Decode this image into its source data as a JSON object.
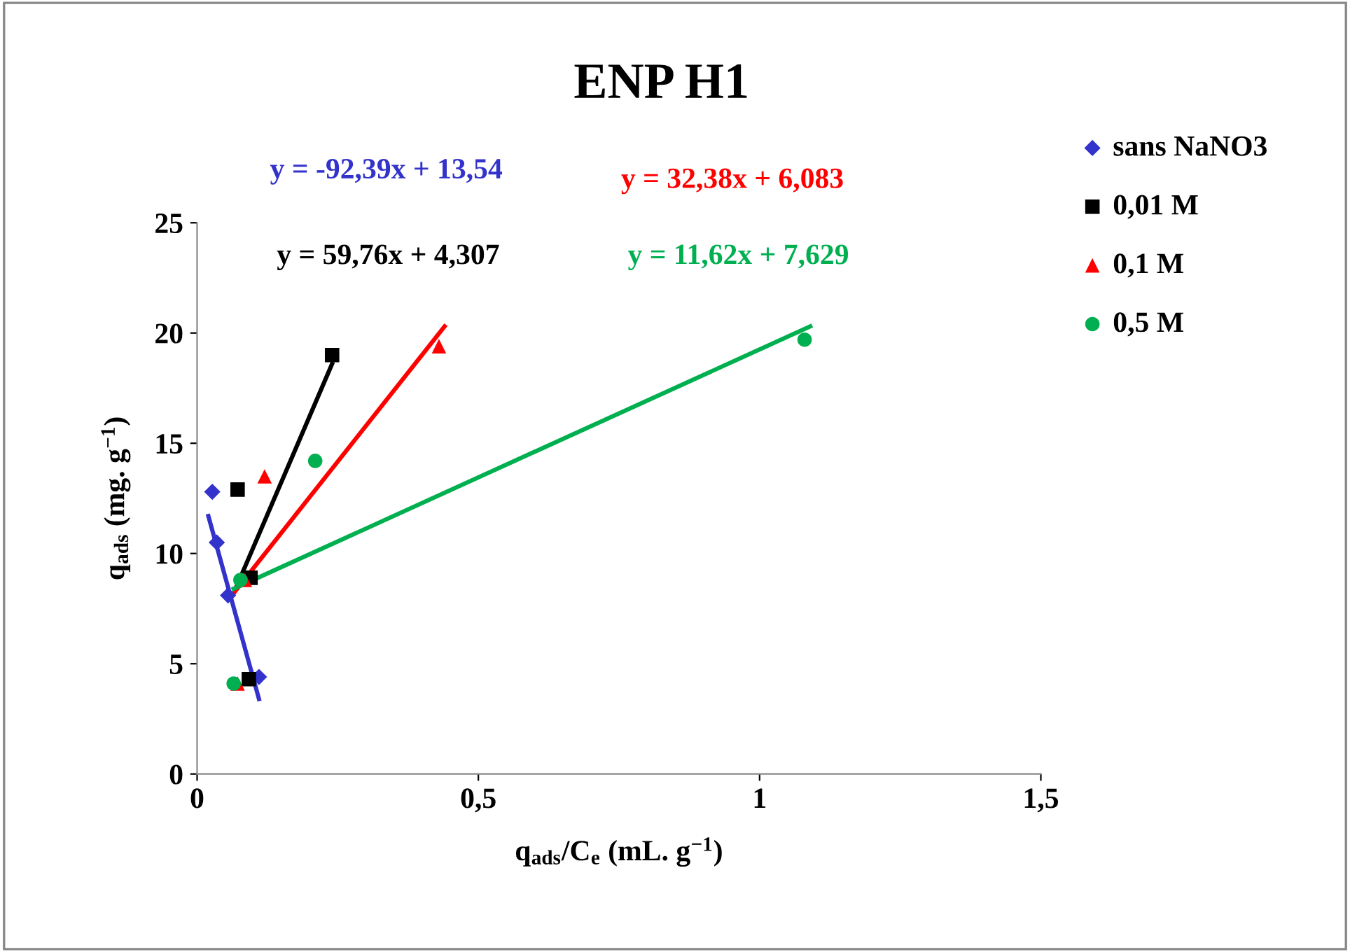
{
  "chart_data": {
    "type": "scatter",
    "title": "ENP H1",
    "xlabel": "q$_{ads}$/C$_{e}$ (mL. g$^{−1}$)",
    "ylabel": "q$_{ads}$ (mg. g$^{−1}$)",
    "xlim": [
      0,
      1.5
    ],
    "ylim": [
      0,
      25
    ],
    "xticks": [
      0,
      {
        "value": 0.5,
        "label": "0,5"
      },
      1,
      {
        "value": 1.5,
        "label": "1,5"
      }
    ],
    "yticks": [
      0,
      5,
      10,
      15,
      20,
      25
    ],
    "grid": false,
    "legend": "right",
    "series": [
      {
        "name": "sans NaNO3",
        "color": "#3333cc",
        "marker": "diamond",
        "x": [
          0.027,
          0.035,
          0.055,
          0.11
        ],
        "values": [
          12.8,
          10.5,
          8.1,
          4.4
        ]
      },
      {
        "name": "0,01 M",
        "color": "#000000",
        "marker": "square",
        "x": [
          0.072,
          0.095,
          0.092,
          0.24
        ],
        "values": [
          12.9,
          8.9,
          4.3,
          19.0
        ]
      },
      {
        "name": "0,1 M",
        "color": "#ff0000",
        "marker": "triangle",
        "x": [
          0.12,
          0.072,
          0.085,
          0.43
        ],
        "values": [
          13.5,
          4.1,
          8.8,
          19.4
        ]
      },
      {
        "name": "0,5 M",
        "color": "#00b050",
        "marker": "circle",
        "x": [
          0.065,
          0.21,
          0.077,
          1.08
        ],
        "values": [
          4.1,
          14.2,
          8.8,
          19.7
        ]
      },
      {
        "type": "line",
        "color": "#3333cc",
        "x": [
          0.02,
          0.11
        ],
        "values": [
          11.7,
          3.4
        ]
      },
      {
        "type": "line",
        "color": "#000000",
        "x": [
          0.065,
          0.24
        ],
        "values": [
          8.2,
          18.6
        ]
      },
      {
        "type": "line",
        "color": "#ff0000",
        "x": [
          0.065,
          0.44
        ],
        "values": [
          8.2,
          20.3
        ]
      },
      {
        "type": "line",
        "color": "#00b050",
        "x": [
          0.065,
          1.09
        ],
        "values": [
          8.4,
          20.3
        ]
      }
    ],
    "annotations": [
      "y = -92,39x + 13,54",
      "y = 59,76x + 4,307",
      "y = 32,38x + 6,083",
      "y = 11,62x + 7,629"
    ]
  }
}
